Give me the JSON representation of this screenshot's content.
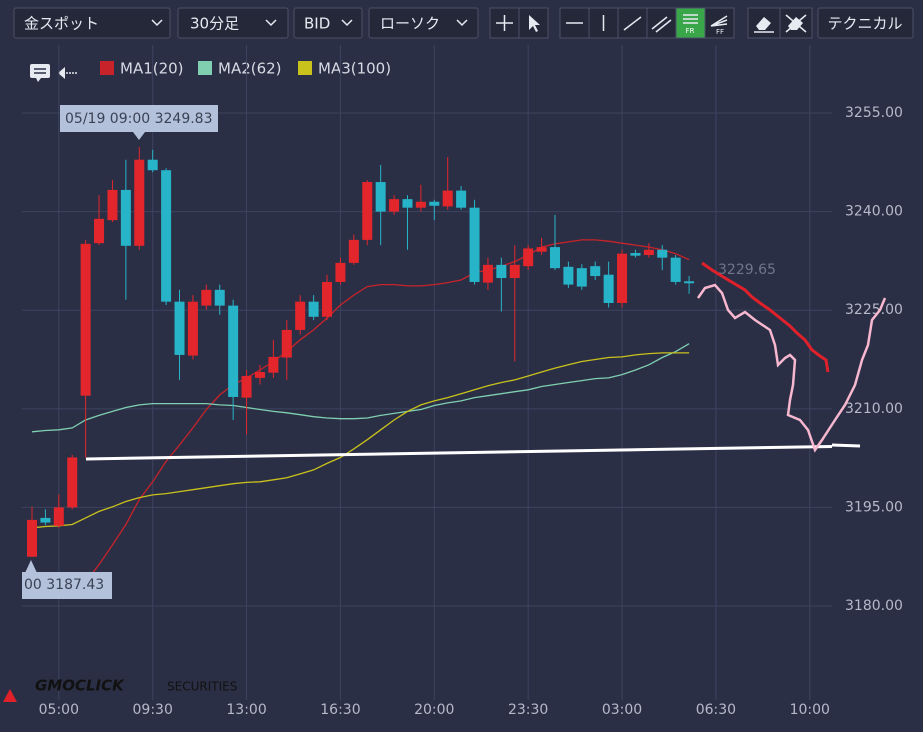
{
  "toolbar": {
    "symbol": "金スポット",
    "timeframe": "30分足",
    "price_type": "BID",
    "chart_style": "ローソク",
    "technical": "テクニカル"
  },
  "logo": {
    "brand": "GMOCLICK",
    "suffix": "SECURITIES"
  },
  "chart_data": {
    "type": "candlestick",
    "categories": [
      null,
      null,
      "05:00",
      null,
      null,
      null,
      null,
      null,
      null,
      "09:30",
      null,
      null,
      null,
      null,
      null,
      null,
      "13:00",
      null,
      null,
      null,
      null,
      null,
      null,
      "16:30",
      null,
      null,
      null,
      null,
      null,
      null,
      "20:00",
      null,
      null,
      null,
      null,
      null,
      null,
      "23:30",
      null,
      null,
      null,
      null,
      null,
      null,
      "03:00",
      null,
      null,
      null,
      null,
      null,
      null,
      "06:30",
      null,
      null,
      null,
      null,
      null,
      null,
      "10:00",
      null
    ],
    "open": [
      3187.5,
      3193.4,
      3192.2,
      3195.0,
      3212.0,
      3235.2,
      3238.7,
      3243.3,
      3234.8,
      3247.9,
      3246.3,
      3226.3,
      3218.1,
      3225.7,
      3228.1,
      3225.7,
      3211.7,
      3214.7,
      3215.5,
      3217.8,
      3222.0,
      3226.3,
      3224.0,
      3229.3,
      3232.2,
      3235.7,
      3244.5,
      3240.0,
      3241.9,
      3240.6,
      3241.5,
      3240.8,
      3243.2,
      3240.6,
      3229.2,
      3231.9,
      3229.9,
      3231.7,
      3233.9,
      3234.6,
      3231.6,
      3231.4,
      3231.7,
      3230.4,
      3226.1,
      3233.7,
      3233.4,
      3234.2,
      3233.0,
      3229.4,
      null,
      null,
      null,
      null,
      null,
      null,
      null,
      null,
      null,
      null
    ],
    "high": [
      3195.1,
      3194.7,
      3197.0,
      3203.0,
      3235.7,
      3242.5,
      3244.8,
      3247.9,
      3249.83,
      3249.4,
      3246.6,
      3228.1,
      3227.3,
      3228.9,
      3228.9,
      3226.6,
      3215.9,
      3216.7,
      3220.5,
      3223.5,
      3227.3,
      3227.3,
      3230.4,
      3233.0,
      3236.5,
      3244.8,
      3247.1,
      3242.5,
      3242.5,
      3244.1,
      3241.8,
      3248.3,
      3243.9,
      3241.8,
      3233.0,
      3233.0,
      3234.9,
      3234.9,
      3236.0,
      3239.5,
      3232.4,
      3232.0,
      3232.4,
      3232.4,
      3234.2,
      3234.2,
      3235.2,
      3234.9,
      3233.4,
      3230.2,
      null,
      null,
      null,
      null,
      null,
      null,
      null,
      null,
      null,
      null
    ],
    "low": [
      3187.43,
      3192.3,
      3191.9,
      3194.7,
      3202.6,
      3234.9,
      3238.4,
      3226.6,
      3234.2,
      3246.0,
      3225.8,
      3214.4,
      3217.5,
      3225.1,
      3224.3,
      3208.3,
      3206.1,
      3213.7,
      3214.7,
      3214.4,
      3221.3,
      3223.5,
      3223.5,
      3228.9,
      3231.9,
      3234.9,
      3234.9,
      3239.5,
      3234.2,
      3240.0,
      3238.7,
      3240.3,
      3240.3,
      3228.9,
      3228.1,
      3224.8,
      3217.2,
      3231.1,
      3233.4,
      3231.1,
      3228.4,
      3228.1,
      3229.6,
      3225.4,
      3225.4,
      3233.0,
      3233.0,
      3231.1,
      3228.9,
      3227.5,
      null,
      null,
      null,
      null,
      null,
      null,
      null,
      null,
      null,
      null
    ],
    "close": [
      3193.1,
      3192.7,
      3195.0,
      3202.6,
      3235.1,
      3238.9,
      3243.3,
      3234.8,
      3247.9,
      3246.3,
      3226.3,
      3218.2,
      3226.3,
      3228.1,
      3225.7,
      3211.8,
      3215.0,
      3215.6,
      3217.9,
      3222.0,
      3226.3,
      3224.0,
      3229.3,
      3232.2,
      3235.7,
      3244.5,
      3240.0,
      3241.9,
      3240.6,
      3241.5,
      3240.9,
      3243.2,
      3240.6,
      3229.3,
      3231.9,
      3229.9,
      3231.9,
      3234.4,
      3234.6,
      3231.4,
      3228.9,
      3228.6,
      3230.2,
      3226.1,
      3233.6,
      3233.3,
      3234.2,
      3233.0,
      3229.3,
      3229.1,
      null,
      null,
      null,
      null,
      null,
      null,
      null,
      null,
      null,
      null
    ],
    "up_color": "#e3262c",
    "down_color": "#27b4c9",
    "series": [
      {
        "name": "MA1(20)",
        "color": "#c8232a",
        "values": [
          3182.5,
          3182.1,
          3181.4,
          3181.6,
          3183.6,
          3186.3,
          3189.3,
          3192.4,
          3196.2,
          3198.9,
          3202.0,
          3204.5,
          3207.1,
          3209.9,
          3212.1,
          3213.7,
          3214.7,
          3215.9,
          3217.2,
          3218.7,
          3220.5,
          3222.0,
          3223.8,
          3225.8,
          3227.3,
          3228.6,
          3228.9,
          3228.9,
          3228.7,
          3228.7,
          3228.9,
          3229.2,
          3229.6,
          3230.7,
          3231.1,
          3231.7,
          3232.4,
          3233.4,
          3234.6,
          3235.1,
          3235.4,
          3235.7,
          3235.7,
          3235.5,
          3235.2,
          3234.9,
          3234.6,
          3234.2,
          3233.6,
          3232.7,
          null,
          null,
          null,
          null,
          null,
          null,
          null,
          null,
          null,
          null
        ]
      },
      {
        "name": "MA2(62)",
        "color": "#7fcfb0",
        "values": [
          3206.5,
          3206.7,
          3206.8,
          3207.1,
          3208.3,
          3209.0,
          3209.6,
          3210.2,
          3210.6,
          3210.8,
          3210.8,
          3210.8,
          3210.8,
          3210.8,
          3210.6,
          3210.5,
          3210.2,
          3209.9,
          3209.6,
          3209.4,
          3209.1,
          3208.8,
          3208.6,
          3208.5,
          3208.5,
          3208.6,
          3209.0,
          3209.3,
          3209.6,
          3209.9,
          3210.5,
          3210.9,
          3211.2,
          3211.7,
          3212.0,
          3212.3,
          3212.6,
          3212.9,
          3213.4,
          3213.7,
          3214.0,
          3214.3,
          3214.6,
          3214.7,
          3215.2,
          3215.9,
          3216.7,
          3217.8,
          3218.7,
          3219.9,
          null,
          null,
          null,
          null,
          null,
          null,
          null,
          null,
          null,
          null
        ]
      },
      {
        "name": "MA3(100)",
        "color": "#c9c21c",
        "values": [
          3191.9,
          3192.1,
          3192.2,
          3192.4,
          3193.4,
          3194.4,
          3195.1,
          3195.9,
          3196.5,
          3196.9,
          3197.1,
          3197.4,
          3197.7,
          3198.0,
          3198.3,
          3198.6,
          3198.8,
          3198.9,
          3199.2,
          3199.5,
          3200.1,
          3200.7,
          3201.7,
          3202.6,
          3203.9,
          3205.3,
          3206.8,
          3208.3,
          3209.6,
          3210.6,
          3211.2,
          3211.7,
          3212.3,
          3212.9,
          3213.5,
          3214.0,
          3214.4,
          3215.0,
          3215.6,
          3216.2,
          3216.7,
          3217.2,
          3217.5,
          3217.8,
          3217.9,
          3218.2,
          3218.4,
          3218.5,
          3218.5,
          3218.5,
          null,
          null,
          null,
          null,
          null,
          null,
          null,
          null,
          null,
          null
        ]
      }
    ],
    "ylim": [
      3165.7,
      3265.35
    ],
    "yticks": [
      {
        "value": 3180,
        "label": "3180.00"
      },
      {
        "value": 3195,
        "label": "3195.00"
      },
      {
        "value": 3210,
        "label": "3210.00"
      },
      {
        "value": 3225,
        "label": "3225.00"
      },
      {
        "value": 3240,
        "label": "3240.00"
      },
      {
        "value": 3255,
        "label": "3255.00"
      }
    ],
    "grid": true,
    "annotations": [
      {
        "text": "05/19 09:00 3249.83"
      },
      {
        "text": "00 3187.43"
      },
      {
        "text": "3229.65"
      }
    ]
  }
}
